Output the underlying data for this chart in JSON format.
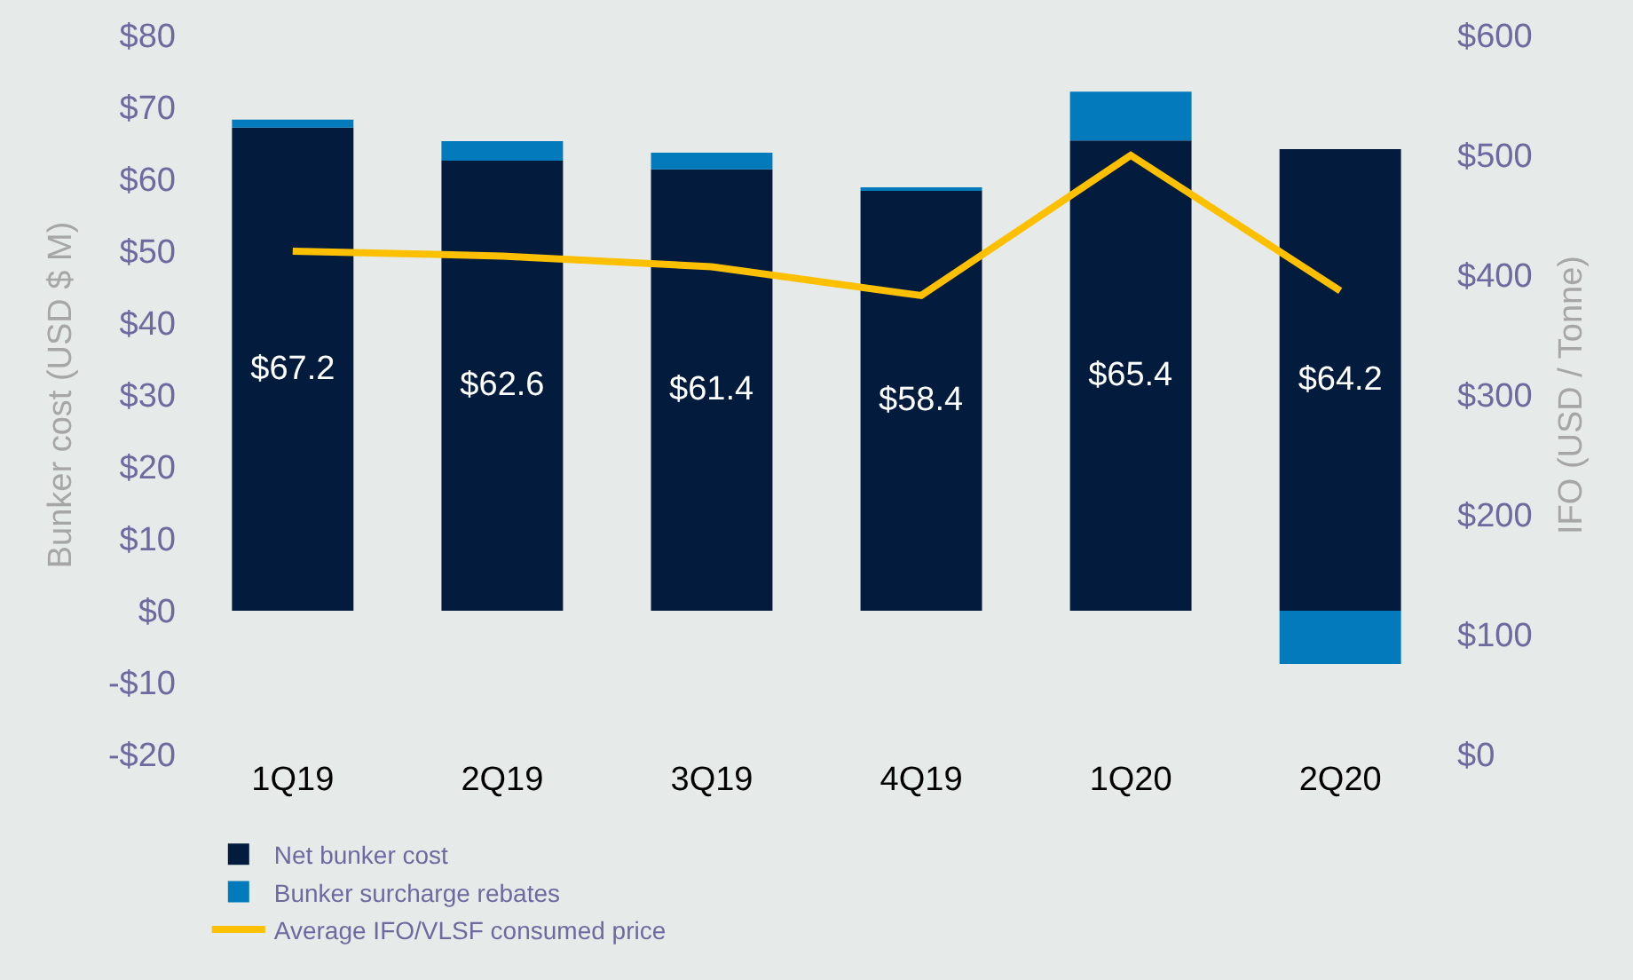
{
  "chart_data": {
    "type": "bar",
    "stacked": true,
    "ylabel": "Bunker cost (USD $ M)",
    "y2label": "IFO (USD / Tonne)",
    "categories": [
      "1Q19",
      "2Q19",
      "3Q19",
      "4Q19",
      "1Q20",
      "2Q20"
    ],
    "series": [
      {
        "name": "Net bunker cost",
        "color": "#031c3e",
        "values": [
          67.2,
          62.6,
          61.4,
          58.4,
          65.4,
          64.2
        ],
        "value_labels": [
          "$67.2",
          "$62.6",
          "$61.4",
          "$58.4",
          "$65.4",
          "$64.2"
        ]
      },
      {
        "name": "Bunker surcharge rebates",
        "color": "#037abb",
        "values": [
          1.1,
          2.7,
          2.3,
          0.5,
          6.8,
          -7.4
        ]
      },
      {
        "name": "Average IFO/VLSF consumed price",
        "type": "line",
        "axis": "y2",
        "color": "#fdc000",
        "values": [
          420,
          416,
          407,
          383,
          500,
          387
        ],
        "marker": "none"
      }
    ],
    "ylim": [
      -20,
      80
    ],
    "yticks": [
      {
        "value": -20,
        "label": "-$20"
      },
      {
        "value": -10,
        "label": "-$10"
      },
      {
        "value": 0,
        "label": "$0"
      },
      {
        "value": 10,
        "label": "$10"
      },
      {
        "value": 20,
        "label": "$20"
      },
      {
        "value": 30,
        "label": "$30"
      },
      {
        "value": 40,
        "label": "$40"
      },
      {
        "value": 50,
        "label": "$50"
      },
      {
        "value": 60,
        "label": "$60"
      },
      {
        "value": 70,
        "label": "$70"
      },
      {
        "value": 80,
        "label": "$80"
      }
    ],
    "y2lim": [
      0,
      600
    ],
    "y2ticks": [
      {
        "value": 0,
        "label": "$0"
      },
      {
        "value": 100,
        "label": "$100"
      },
      {
        "value": 200,
        "label": "$200"
      },
      {
        "value": 300,
        "label": "$300"
      },
      {
        "value": 400,
        "label": "$400"
      },
      {
        "value": 500,
        "label": "$500"
      },
      {
        "value": 600,
        "label": "$600"
      }
    ],
    "grid": false,
    "legend": "bottom"
  }
}
